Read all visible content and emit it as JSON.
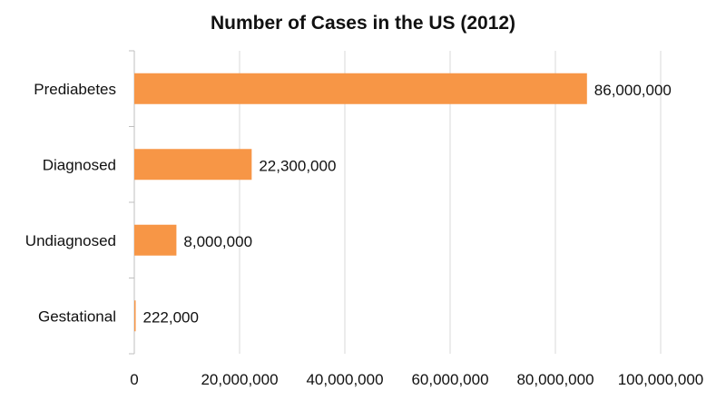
{
  "chart_data": {
    "type": "bar",
    "orientation": "horizontal",
    "title": "Number of Cases in the US (2012)",
    "xlabel": "",
    "ylabel": "",
    "categories": [
      "Prediabetes",
      "Diagnosed",
      "Undiagnosed",
      "Gestational"
    ],
    "values": [
      86000000,
      22300000,
      8000000,
      222000
    ],
    "data_labels": [
      "86,000,000",
      "22,300,000",
      "8,000,000",
      "222,000"
    ],
    "xlim": [
      0,
      100000000
    ],
    "x_ticks": [
      0,
      20000000,
      40000000,
      60000000,
      80000000,
      100000000
    ],
    "x_tick_labels": [
      "0",
      "20,000,000",
      "40,000,000",
      "60,000,000",
      "80,000,000",
      "100,000,000"
    ],
    "grid": true,
    "legend": "none",
    "colors": {
      "bar": "#F79646",
      "grid": "#D9D9D9",
      "axis": "#BFBFBF"
    }
  }
}
